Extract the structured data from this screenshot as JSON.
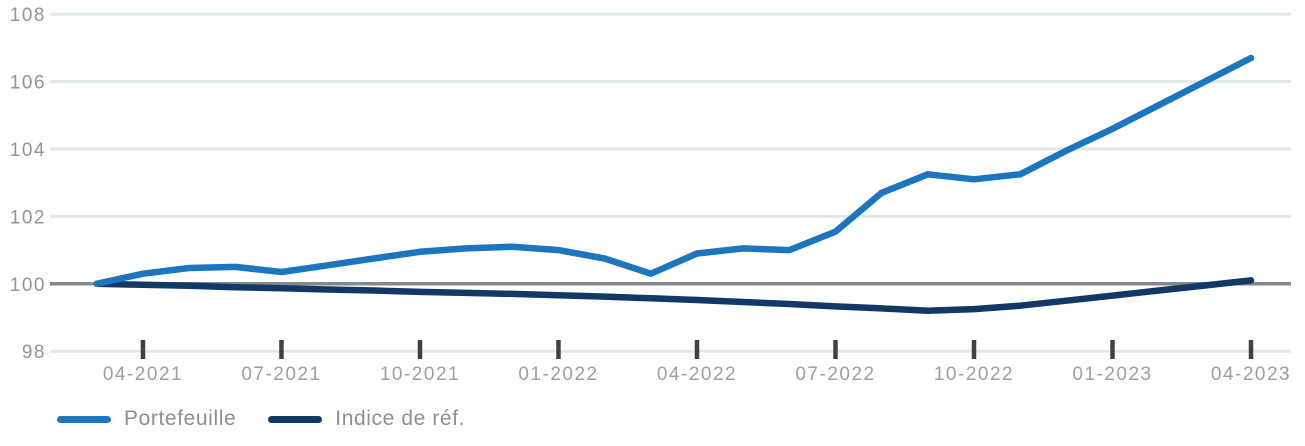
{
  "chart_data": {
    "type": "line",
    "title": "",
    "xlabel": "",
    "ylabel": "",
    "x": [
      "03-2021",
      "04-2021",
      "05-2021",
      "06-2021",
      "07-2021",
      "08-2021",
      "09-2021",
      "10-2021",
      "11-2021",
      "12-2021",
      "01-2022",
      "02-2022",
      "03-2022",
      "04-2022",
      "05-2022",
      "06-2022",
      "07-2022",
      "08-2022",
      "09-2022",
      "10-2022",
      "11-2022",
      "12-2022",
      "01-2023",
      "02-2023",
      "03-2023",
      "04-2023"
    ],
    "x_tick_labels": [
      "04-2021",
      "07-2021",
      "10-2021",
      "01-2022",
      "04-2022",
      "07-2022",
      "10-2022",
      "01-2023",
      "04-2023"
    ],
    "y_ticks": [
      98,
      100,
      102,
      104,
      106,
      108
    ],
    "ylim": [
      98,
      108
    ],
    "baseline": 100,
    "grid": "horizontal",
    "legend_position": "bottom-left",
    "series": [
      {
        "name": "Portefeuille",
        "color": "#1b76bf",
        "values": [
          100.0,
          100.3,
          100.47,
          100.5,
          100.35,
          100.55,
          100.75,
          100.95,
          101.05,
          101.1,
          101.0,
          100.75,
          100.3,
          100.9,
          101.05,
          101.0,
          101.55,
          102.7,
          103.25,
          103.1,
          103.25,
          103.95,
          104.6,
          105.3,
          106.0,
          106.7
        ]
      },
      {
        "name": "Indice de réf.",
        "color": "#123866",
        "values": [
          100.0,
          99.97,
          99.94,
          99.9,
          99.87,
          99.83,
          99.8,
          99.76,
          99.73,
          99.7,
          99.66,
          99.62,
          99.57,
          99.52,
          99.46,
          99.4,
          99.33,
          99.27,
          99.2,
          99.25,
          99.35,
          99.5,
          99.65,
          99.8,
          99.95,
          100.1
        ]
      }
    ]
  },
  "colors": {
    "grid": "#e2e8ea",
    "baseline": "#85898d",
    "tick": "#3d4245",
    "y_label": "#90969a",
    "x_label": "#9aa0a3",
    "legend_text": "#8b9094",
    "background": "#ffffff"
  }
}
